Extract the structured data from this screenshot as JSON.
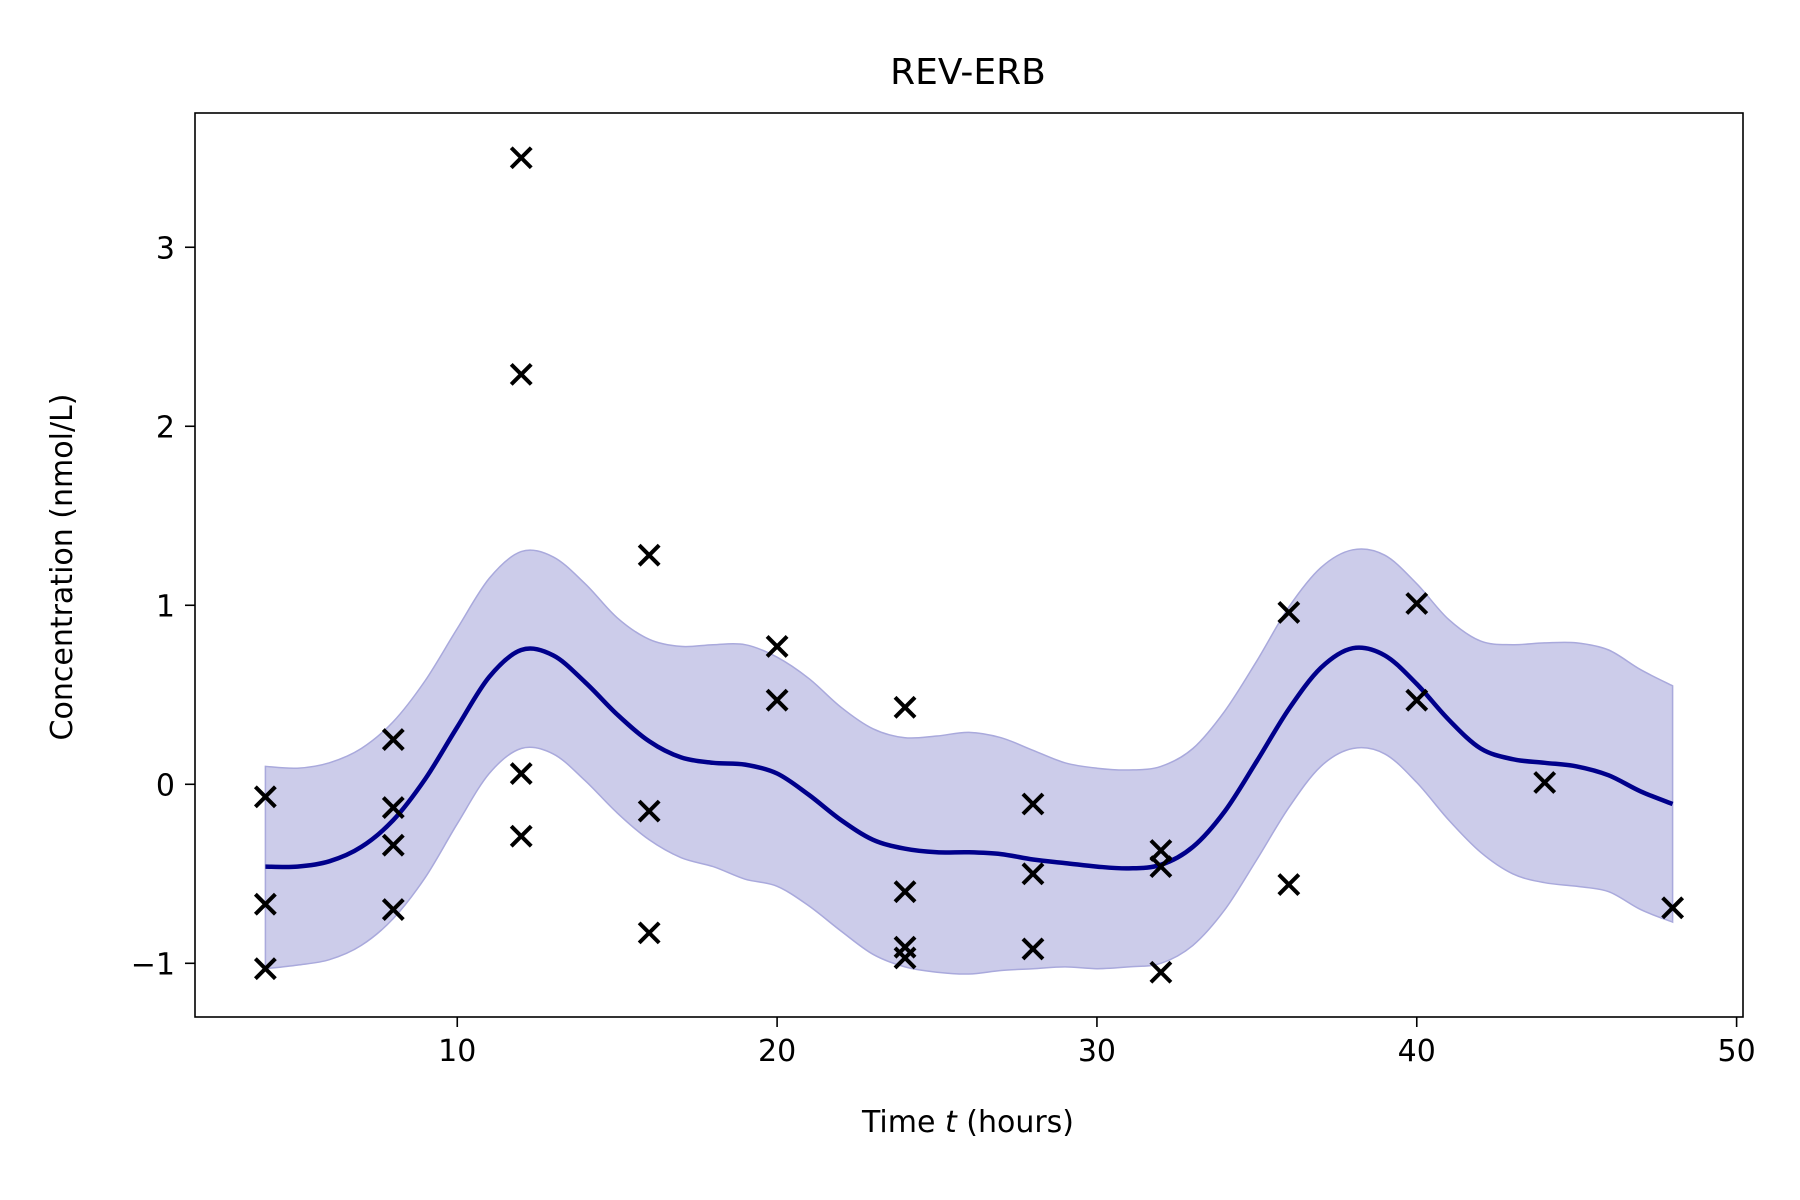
{
  "chart_data": {
    "type": "line",
    "title": "REV-ERB",
    "xlabel_pre": "Time ",
    "xlabel_var": "t",
    "xlabel_post": " (hours)",
    "ylabel": "Concentration (nmol/L)",
    "xlim": [
      1.8,
      50.2
    ],
    "ylim": [
      -1.3,
      3.75
    ],
    "x_ticks": [
      10,
      20,
      30,
      40,
      50
    ],
    "x_tick_labels": [
      "10",
      "20",
      "30",
      "40",
      "50"
    ],
    "y_ticks": [
      -1,
      0,
      1,
      2,
      3
    ],
    "y_tick_labels": [
      "−1",
      "0",
      "1",
      "2",
      "3"
    ],
    "grid": false,
    "colors": {
      "mean_line": "#00008b",
      "band_fill": "#ccccea",
      "band_edge": "#a9a9dc",
      "points": "#000000"
    },
    "series": [
      {
        "type": "line",
        "x": [
          4,
          5,
          6,
          7,
          8,
          9,
          10,
          11,
          12,
          13,
          14,
          15,
          16,
          17,
          18,
          19,
          20,
          21,
          22,
          23,
          24,
          25,
          26,
          27,
          28,
          29,
          30,
          31,
          32,
          33,
          34,
          35,
          36,
          37,
          38,
          39,
          40,
          41,
          42,
          43,
          44,
          45,
          46,
          47,
          48
        ],
        "y": [
          -0.46,
          -0.46,
          -0.43,
          -0.35,
          -0.2,
          0.03,
          0.32,
          0.6,
          0.75,
          0.72,
          0.57,
          0.39,
          0.24,
          0.15,
          0.12,
          0.11,
          0.06,
          -0.06,
          -0.2,
          -0.31,
          -0.36,
          -0.38,
          -0.38,
          -0.39,
          -0.42,
          -0.44,
          -0.46,
          -0.47,
          -0.45,
          -0.35,
          -0.15,
          0.13,
          0.42,
          0.65,
          0.76,
          0.72,
          0.56,
          0.36,
          0.2,
          0.14,
          0.12,
          0.1,
          0.05,
          -0.04,
          -0.11
        ]
      },
      {
        "type": "band",
        "x": [
          4,
          5,
          6,
          7,
          8,
          9,
          10,
          11,
          12,
          13,
          14,
          15,
          16,
          17,
          18,
          19,
          20,
          21,
          22,
          23,
          24,
          25,
          26,
          27,
          28,
          29,
          30,
          31,
          32,
          33,
          34,
          35,
          36,
          37,
          38,
          39,
          40,
          41,
          42,
          43,
          44,
          45,
          46,
          47,
          48
        ],
        "upper": [
          0.1,
          0.09,
          0.12,
          0.2,
          0.35,
          0.58,
          0.87,
          1.15,
          1.3,
          1.27,
          1.12,
          0.93,
          0.81,
          0.77,
          0.78,
          0.78,
          0.71,
          0.59,
          0.43,
          0.31,
          0.26,
          0.27,
          0.29,
          0.26,
          0.19,
          0.12,
          0.09,
          0.08,
          0.1,
          0.2,
          0.41,
          0.69,
          0.99,
          1.21,
          1.31,
          1.28,
          1.12,
          0.92,
          0.8,
          0.78,
          0.79,
          0.79,
          0.75,
          0.64,
          0.55
        ],
        "lower": [
          -1.03,
          -1.01,
          -0.98,
          -0.9,
          -0.75,
          -0.52,
          -0.22,
          0.06,
          0.2,
          0.17,
          0.02,
          -0.16,
          -0.31,
          -0.41,
          -0.46,
          -0.53,
          -0.57,
          -0.68,
          -0.82,
          -0.95,
          -1.02,
          -1.05,
          -1.06,
          -1.04,
          -1.03,
          -1.02,
          -1.03,
          -1.02,
          -1.0,
          -0.9,
          -0.7,
          -0.42,
          -0.13,
          0.1,
          0.2,
          0.17,
          0.01,
          -0.2,
          -0.38,
          -0.5,
          -0.55,
          -0.57,
          -0.6,
          -0.7,
          -0.77
        ]
      },
      {
        "type": "scatter",
        "marker": "x",
        "x": [
          4,
          4,
          4,
          8,
          8,
          8,
          8,
          12,
          12,
          12,
          12,
          16,
          16,
          16,
          20,
          20,
          24,
          24,
          24,
          24,
          28,
          28,
          28,
          32,
          32,
          32,
          36,
          36,
          40,
          40,
          44,
          48
        ],
        "y": [
          -0.07,
          -0.67,
          -1.03,
          0.25,
          -0.13,
          -0.34,
          -0.7,
          3.5,
          2.29,
          0.06,
          -0.29,
          1.28,
          -0.15,
          -0.83,
          0.77,
          0.47,
          0.43,
          -0.6,
          -0.91,
          -0.97,
          -0.11,
          -0.5,
          -0.92,
          -0.37,
          -0.46,
          -1.05,
          0.96,
          -0.56,
          1.01,
          0.47,
          0.01,
          -0.69
        ]
      }
    ]
  }
}
